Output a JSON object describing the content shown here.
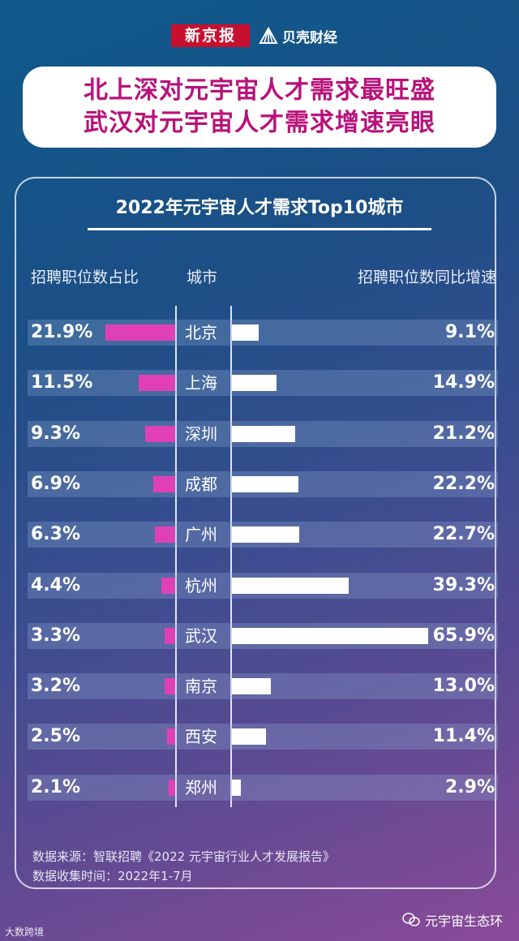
{
  "header": {
    "logo_xjb": "新京报",
    "logo_bk": "贝壳财经"
  },
  "banner": {
    "line1": "北上深对元宇宙人才需求最旺盛",
    "line2": "武汉对元宇宙人才需求增速亮眼"
  },
  "colors": {
    "left_bar": "#e040b6",
    "right_bar": "#ffffff",
    "banner_text": "#b8127a"
  },
  "chart_data": {
    "type": "bar",
    "title": "2022年元宇宙人才需求Top10城市",
    "headers": {
      "left": "招聘职位数占比",
      "middle": "城市",
      "right": "招聘职位数同比增速"
    },
    "categories": [
      "北京",
      "上海",
      "深圳",
      "成都",
      "广州",
      "杭州",
      "武汉",
      "南京",
      "西安",
      "郑州"
    ],
    "series": [
      {
        "name": "招聘职位数占比",
        "values": [
          21.9,
          11.5,
          9.3,
          6.9,
          6.3,
          4.4,
          3.3,
          3.2,
          2.5,
          2.1
        ],
        "labels": [
          "21.9%",
          "11.5%",
          "9.3%",
          "6.9%",
          "6.3%",
          "4.4%",
          "3.3%",
          "3.2%",
          "2.5%",
          "2.1%"
        ]
      },
      {
        "name": "招聘职位数同比增速",
        "values": [
          9.1,
          14.9,
          21.2,
          22.2,
          22.7,
          39.3,
          65.9,
          13.0,
          11.4,
          2.9
        ],
        "labels": [
          "9.1%",
          "14.9%",
          "21.2%",
          "22.2%",
          "22.7%",
          "39.3%",
          "65.9%",
          "13.0%",
          "11.4%",
          "2.9%"
        ]
      }
    ]
  },
  "source": {
    "line1": "数据来源：智联招聘《2022 元宇宙行业人才发展报告》",
    "line2": "数据收集时间：2022年1-7月"
  },
  "footer": {
    "left": "大数跨境",
    "right": "元宇宙生态环"
  }
}
